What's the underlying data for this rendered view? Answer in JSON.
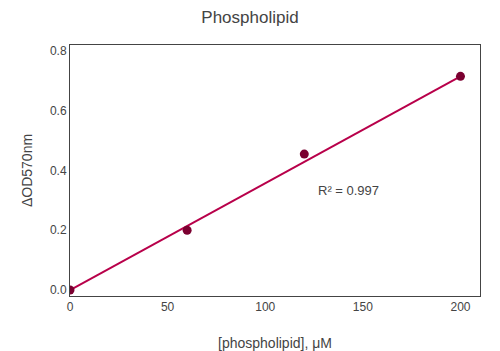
{
  "chart_data": {
    "type": "scatter",
    "title": "Phospholipid",
    "x_label": "[phospholipid], μM",
    "y_label": "ΔOD570nm",
    "x": [
      0,
      60,
      120,
      200
    ],
    "series": [
      {
        "type": "scatter",
        "color": "#7B0030",
        "values": [
          0.0,
          0.2,
          0.455,
          0.715
        ]
      },
      {
        "type": "line",
        "color": "#B8004A",
        "x": [
          0,
          200
        ],
        "values": [
          0.0,
          0.715
        ]
      }
    ],
    "annotations": [
      "R² = 0.997"
    ],
    "xlim": [
      0,
      210
    ],
    "ylim": [
      -0.02,
      0.82
    ],
    "xticks": [
      0,
      50,
      100,
      150,
      200
    ],
    "yticks": [
      {
        "value": 0.0,
        "label": "0.0"
      },
      0.2,
      0.4,
      0.6,
      0.8
    ],
    "grid": false
  }
}
